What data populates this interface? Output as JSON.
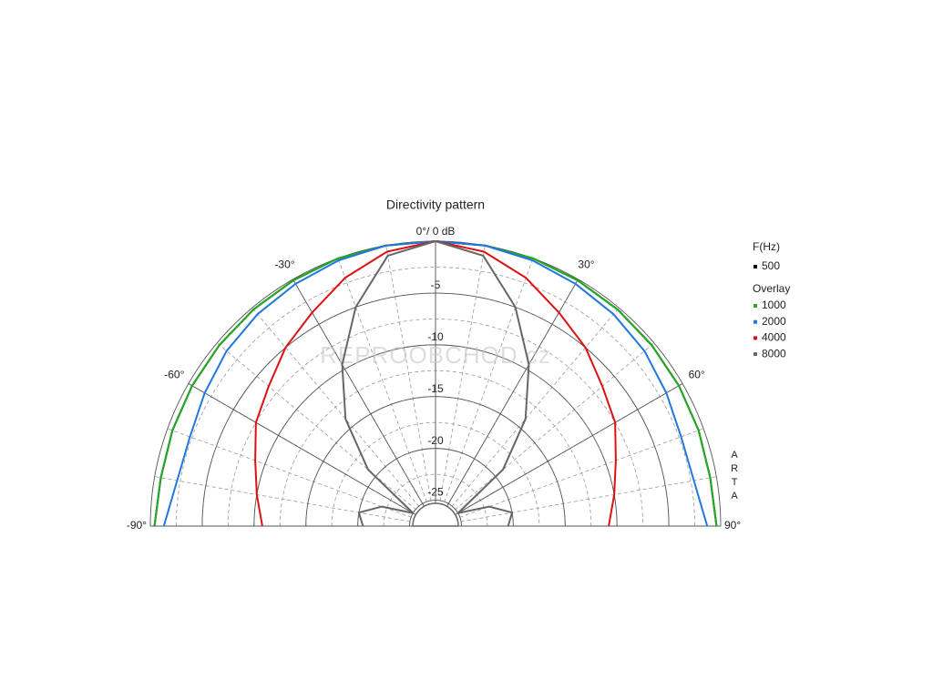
{
  "chart_data": {
    "type": "polar",
    "title": "Directivity pattern",
    "theta": [
      -90,
      -80,
      -70,
      -60,
      -50,
      -40,
      -30,
      -20,
      -10,
      0,
      10,
      20,
      30,
      40,
      50,
      60,
      70,
      80,
      90
    ],
    "rlim": [
      -27.5,
      0
    ],
    "rticks": [
      -5,
      -10,
      -15,
      -20,
      -25
    ],
    "thetaticks": [
      {
        "value": -90,
        "label": "-90°"
      },
      {
        "value": -60,
        "label": "-60°"
      },
      {
        "value": -30,
        "label": "-30°"
      },
      {
        "value": 0,
        "label": "0°/ 0 dB"
      },
      {
        "value": 30,
        "label": "30°"
      },
      {
        "value": 60,
        "label": "60°"
      },
      {
        "value": 90,
        "label": "90°"
      }
    ],
    "legend_title": "F(Hz)",
    "overlay_label": "Overlay",
    "watermark": "REPROOBCHOD.cz",
    "side_label": "ARTA",
    "series": [
      {
        "name": "500",
        "color": "#000000",
        "values": [
          -0.4,
          -0.6,
          -0.5,
          -0.4,
          -0.3,
          -0.2,
          -0.1,
          0,
          0,
          0,
          0,
          0,
          -0.1,
          -0.2,
          -0.3,
          -0.4,
          -0.5,
          -0.6,
          -0.4
        ]
      },
      {
        "name": "1000",
        "color": "#22aa22",
        "values": [
          -0.4,
          -0.6,
          -0.5,
          -0.4,
          -0.3,
          -0.2,
          -0.1,
          0,
          0,
          0,
          0,
          0,
          -0.1,
          -0.2,
          -0.3,
          -0.4,
          -0.5,
          -0.6,
          -0.4
        ]
      },
      {
        "name": "2000",
        "color": "#2277dd",
        "values": [
          -1.3,
          -2.2,
          -2.3,
          -1.8,
          -1.2,
          -0.8,
          -0.5,
          -0.2,
          0,
          0,
          0,
          -0.2,
          -0.5,
          -0.8,
          -1.2,
          -1.8,
          -2.3,
          -2.2,
          -1.3
        ]
      },
      {
        "name": "4000",
        "color": "#dd1111",
        "values": [
          -10.8,
          -10,
          -9,
          -7.5,
          -6.5,
          -5,
          -3.7,
          -2,
          -0.6,
          0,
          -0.6,
          -2,
          -3.7,
          -5,
          -6.5,
          -7.5,
          -9,
          -10,
          -10.8
        ]
      },
      {
        "name": "8000",
        "color": "#666666",
        "values": [
          -20.5,
          -20,
          -22,
          -25,
          -19,
          -14,
          -9.5,
          -5,
          -1,
          0,
          -1,
          -5,
          -9.5,
          -14,
          -19,
          -25,
          -22,
          -20,
          -20.5
        ]
      }
    ]
  }
}
